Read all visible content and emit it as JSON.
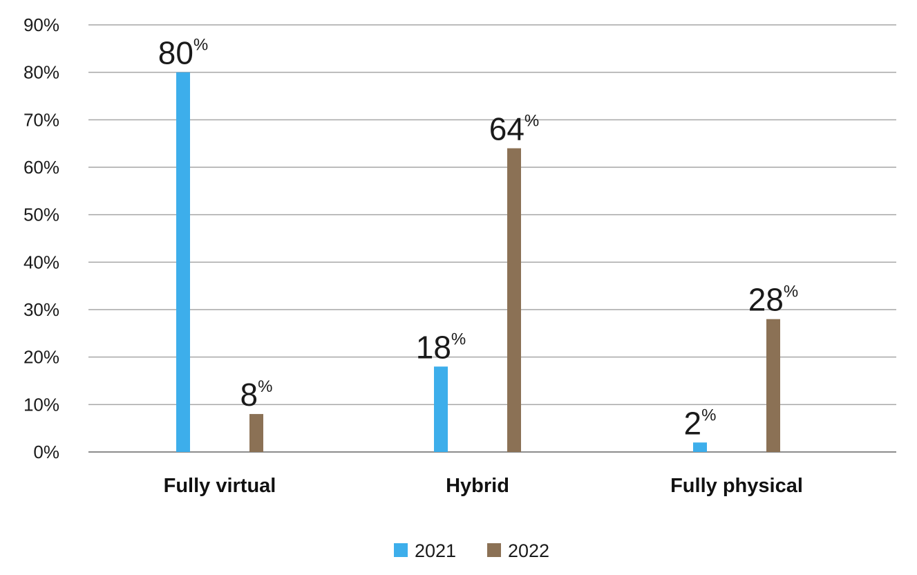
{
  "chart_data": {
    "type": "bar",
    "categories": [
      "Fully virtual",
      "Hybrid",
      "Fully physical"
    ],
    "series": [
      {
        "name": "2021",
        "values": [
          80,
          18,
          2
        ],
        "color": "#3daeeb"
      },
      {
        "name": "2022",
        "values": [
          8,
          64,
          28
        ],
        "color": "#8b7155"
      }
    ],
    "value_suffix": "%",
    "y_ticks": [
      "0%",
      "10%",
      "20%",
      "30%",
      "40%",
      "50%",
      "60%",
      "70%",
      "80%",
      "90%"
    ],
    "ylim": [
      0,
      90
    ],
    "grid": true,
    "legend_position": "bottom-center"
  }
}
